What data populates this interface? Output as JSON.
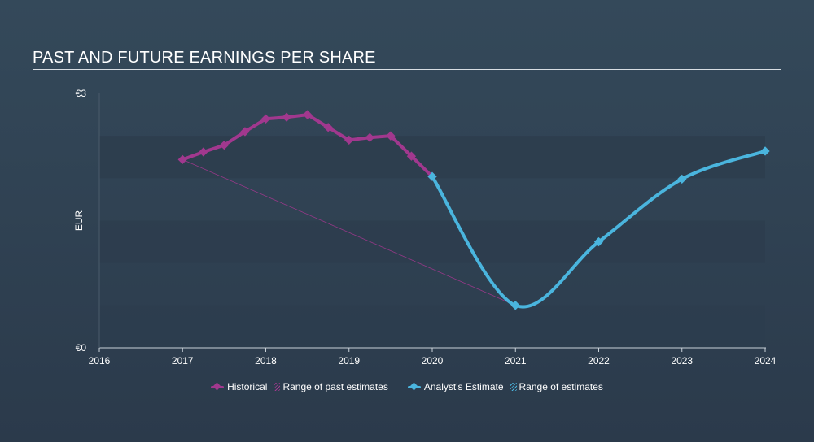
{
  "title": "PAST AND FUTURE EARNINGS PER SHARE",
  "colors": {
    "historical": "#a1388e",
    "estimate": "#4ab5de",
    "background": "#2f3f50"
  },
  "chart_data": {
    "type": "line",
    "ylabel": "EUR",
    "y_tick_labels": [
      "€3",
      "€0"
    ],
    "y_ticks": [
      3,
      0
    ],
    "ylim": [
      0,
      3
    ],
    "xlim": [
      2016,
      2024
    ],
    "x_tick_labels": [
      "2016",
      "2017",
      "2018",
      "2019",
      "2020",
      "2021",
      "2022",
      "2023",
      "2024"
    ],
    "x_ticks": [
      2016,
      2017,
      2018,
      2019,
      2020,
      2021,
      2022,
      2023,
      2024
    ],
    "series": [
      {
        "name": "Historical",
        "color": "#a1388e",
        "x": [
          2017.0,
          2017.25,
          2017.5,
          2017.75,
          2018.0,
          2018.25,
          2018.5,
          2018.75,
          2019.0,
          2019.25,
          2019.5,
          2019.75,
          2020.0
        ],
        "y": [
          2.22,
          2.31,
          2.39,
          2.55,
          2.7,
          2.72,
          2.75,
          2.6,
          2.45,
          2.48,
          2.5,
          2.26,
          2.02
        ]
      },
      {
        "name": "Analyst's Estimate",
        "color": "#4ab5de",
        "x": [
          2020.0,
          2021.0,
          2022.0,
          2023.0,
          2024.0
        ],
        "y": [
          2.02,
          0.5,
          1.25,
          1.99,
          2.32
        ]
      }
    ],
    "past_estimate_range_line": {
      "x": [
        2017.0,
        2021.0
      ],
      "y": [
        2.22,
        0.5
      ]
    },
    "legend": {
      "placement": "bottom-center",
      "items": [
        {
          "label": "Historical",
          "kind": "line",
          "color": "#a1388e"
        },
        {
          "label": "Range of past estimates",
          "kind": "hatch",
          "color": "#a1388e"
        },
        {
          "label": "Analyst's Estimate",
          "kind": "line",
          "color": "#4ab5de"
        },
        {
          "label": "Range of estimates",
          "kind": "hatch",
          "color": "#4ab5de"
        }
      ]
    }
  }
}
